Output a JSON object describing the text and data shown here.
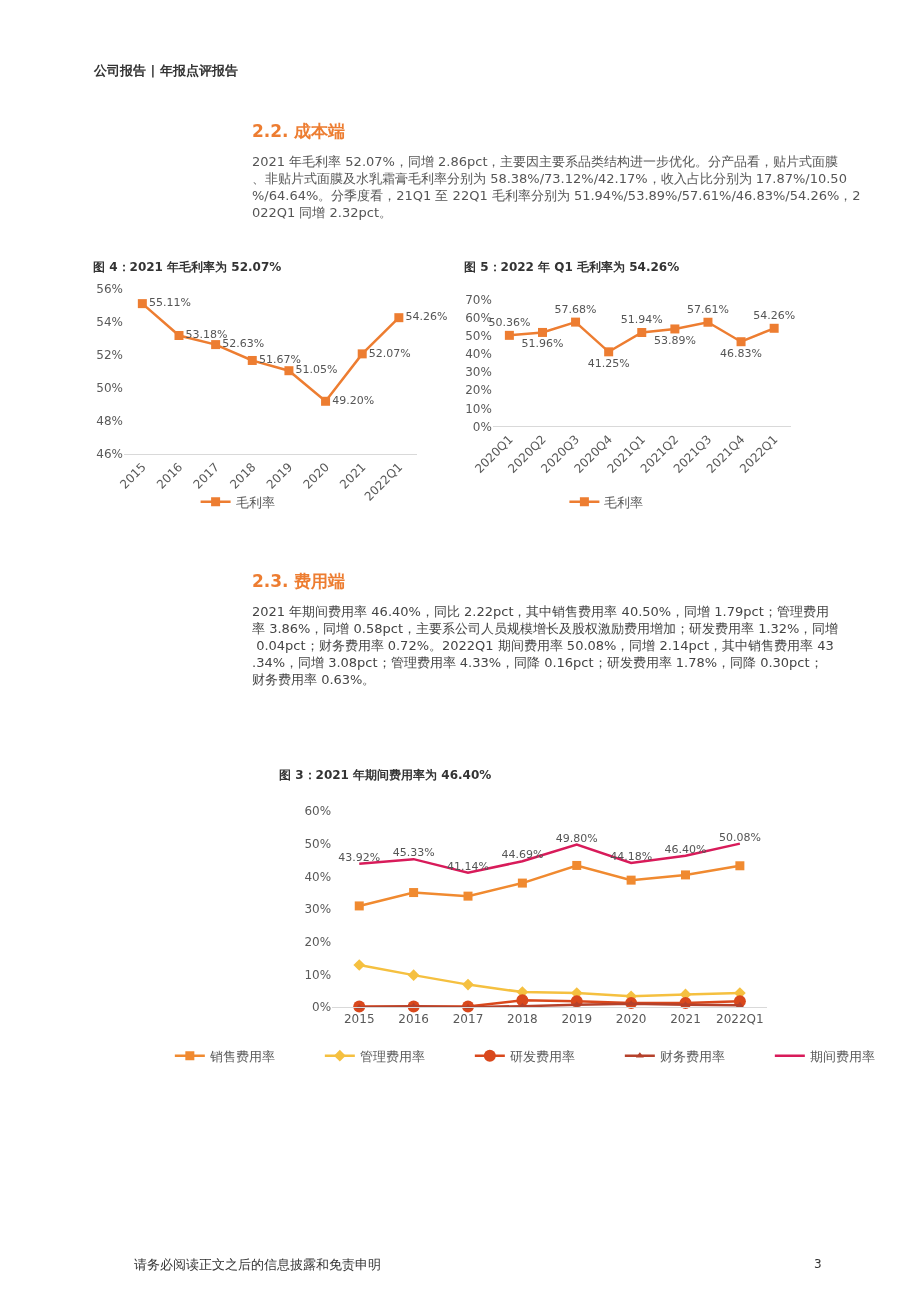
{
  "chart_data": [
    {
      "type": "line",
      "title": "图 4：2021 年毛利率为 52.07%",
      "categories": [
        "2015",
        "2016",
        "2017",
        "2018",
        "2019",
        "2020",
        "2021",
        "2022Q1"
      ],
      "series": [
        {
          "name": "毛利率",
          "color": "#ed7d31",
          "marker": "square",
          "values": [
            55.11,
            53.18,
            52.63,
            51.67,
            51.05,
            49.2,
            52.07,
            54.26
          ],
          "value_labels": [
            "55.11%",
            "53.18%",
            "52.63%",
            "51.67%",
            "51.05%",
            "49.20%",
            "52.07%",
            "54.26%"
          ]
        }
      ],
      "ylim": [
        46,
        56
      ],
      "yticks": [
        {
          "value": 46,
          "label": "46%"
        },
        {
          "value": 48,
          "label": "48%"
        },
        {
          "value": 50,
          "label": "50%"
        },
        {
          "value": 52,
          "label": "52%"
        },
        {
          "value": 54,
          "label": "54%"
        },
        {
          "value": 56,
          "label": "56%"
        }
      ],
      "grid": false,
      "legend": "bottom",
      "annotations": [
        "公司报告 | 年报点评报告",
        "2.2. 成本端",
        "2021 年毛利率 52.07%，同增 2.86pct，主要因主要系品类结构进一步优化。分产品看，贴片式面膜、非贴片式面膜及水乳霜膏毛利率分别为 58.38%/73.12%/42.17%，收入占比分别为 17.87%/10.50%/64.64%。分季度看，21Q1 至 22Q1 毛利率分别为 51.94%/53.89%/57.61%/46.83%/54.26%，2022Q1 同增 2.32pct。"
      ]
    },
    {
      "type": "line",
      "title": "图 5：2022 年 Q1 毛利率为 54.26%",
      "categories": [
        "2020Q1",
        "2020Q2",
        "2020Q3",
        "2020Q4",
        "2021Q1",
        "2021Q2",
        "2021Q3",
        "2021Q4",
        "2022Q1"
      ],
      "series": [
        {
          "name": "毛利率",
          "color": "#ed7d31",
          "marker": "square",
          "values": [
            50.36,
            51.96,
            57.68,
            41.25,
            51.94,
            53.89,
            57.61,
            46.83,
            54.26
          ],
          "value_labels": [
            "50.36%",
            "51.96%",
            "57.68%",
            "41.25%",
            "51.94%",
            "53.89%",
            "57.61%",
            "46.83%",
            "54.26%"
          ]
        }
      ],
      "ylim": [
        0,
        70
      ],
      "yticks": [
        {
          "value": 0,
          "label": "0%"
        },
        {
          "value": 10,
          "label": "10%"
        },
        {
          "value": 20,
          "label": "20%"
        },
        {
          "value": 30,
          "label": "30%"
        },
        {
          "value": 40,
          "label": "40%"
        },
        {
          "value": 50,
          "label": "50%"
        },
        {
          "value": 60,
          "label": "60%"
        },
        {
          "value": 70,
          "label": "70%"
        }
      ],
      "grid": false,
      "legend": "bottom"
    },
    {
      "type": "line",
      "title": "图 3：2021 年期间费用率为 46.40%",
      "categories": [
        "2015",
        "2016",
        "2017",
        "2018",
        "2019",
        "2020",
        "2021",
        "2022Q1"
      ],
      "series": [
        {
          "name": "销售费用率",
          "color": "#f08a30",
          "marker": "square",
          "values": [
            31.0,
            35.1,
            34.0,
            38.0,
            43.4,
            38.9,
            40.5,
            43.3
          ]
        },
        {
          "name": "管理费用率",
          "color": "#f5c040",
          "marker": "diamond",
          "values": [
            12.9,
            9.8,
            6.9,
            4.6,
            4.3,
            3.3,
            3.9,
            4.3
          ]
        },
        {
          "name": "研发费用率",
          "color": "#d9481c",
          "marker": "circle",
          "values": [
            0.2,
            0.2,
            0.2,
            2.1,
            1.8,
            1.3,
            1.3,
            1.8
          ]
        },
        {
          "name": "财务费用率",
          "color": "#b5412b",
          "marker": "triangle",
          "values": [
            0.0,
            0.3,
            0.0,
            0.3,
            0.7,
            1.0,
            0.7,
            0.6
          ]
        },
        {
          "name": "期间费用率",
          "color": "#d81b5a",
          "marker": "none",
          "values": [
            43.92,
            45.33,
            41.14,
            44.69,
            49.8,
            44.18,
            46.4,
            50.08
          ],
          "value_labels": [
            "43.92%",
            "45.33%",
            "41.14%",
            "44.69%",
            "49.80%",
            "44.18%",
            "46.40%",
            "50.08%"
          ]
        }
      ],
      "ylim": [
        0,
        60
      ],
      "yticks": [
        {
          "value": 0,
          "label": "0%"
        },
        {
          "value": 10,
          "label": "10%"
        },
        {
          "value": 20,
          "label": "20%"
        },
        {
          "value": 30,
          "label": "30%"
        },
        {
          "value": 40,
          "label": "40%"
        },
        {
          "value": 50,
          "label": "50%"
        },
        {
          "value": 60,
          "label": "60%"
        }
      ],
      "grid": false,
      "legend": "bottom",
      "annotations": [
        "2.3. 费用端",
        "2021 年期间费用率 46.40%，同比 2.22pct，其中销售费用率 40.50%，同增 1.79pct；管理费用率 3.86%，同增 0.58pct，主要系公司人员规模增长及股权激励费用增加；研发费用率 1.32%，同增 0.04pct；财务费用率 0.72%。2022Q1 期间费用率 50.08%，同增 2.14pct，其中销售费用率 43.34%，同增 3.08pct；管理费用率 4.33%，同降 0.16pct；研发费用率 1.78%，同降 0.30pct；财务费用率 0.63%。",
        "请务必阅读正文之后的信息披露和免责申明",
        "3"
      ]
    }
  ]
}
